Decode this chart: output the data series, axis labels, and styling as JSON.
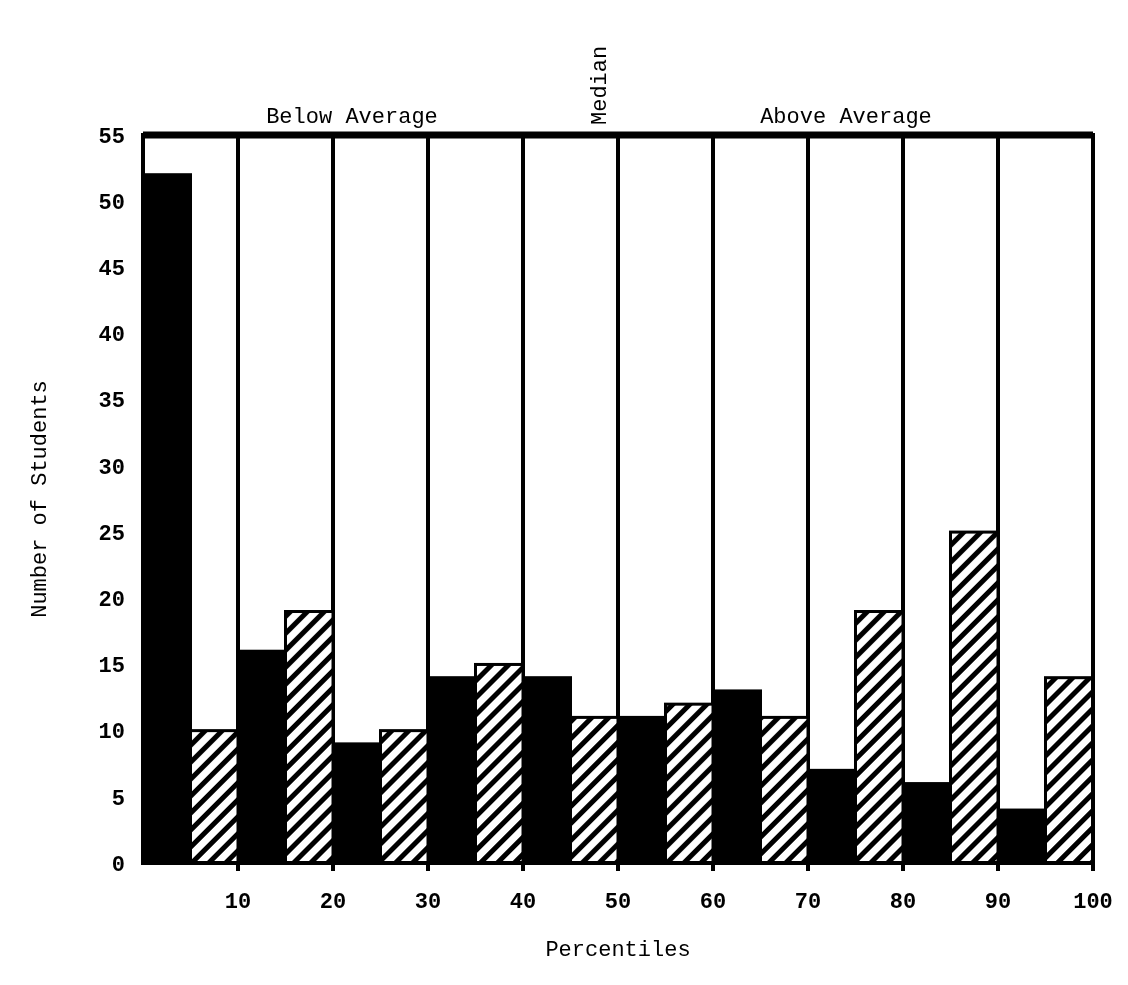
{
  "chart_data": {
    "type": "bar",
    "xlabel": "Percentiles",
    "ylabel": "Number of Students",
    "series": [
      {
        "color": "#000000",
        "x": [
          2.5,
          12.5,
          22.5,
          32.5,
          42.5,
          52.5,
          62.5,
          72.5,
          82.5,
          92.5
        ],
        "values": [
          52,
          16,
          9,
          14,
          14,
          11,
          13,
          7,
          6,
          4
        ]
      },
      {
        "color": "#000000",
        "x": [
          7.5,
          17.5,
          27.5,
          37.5,
          47.5,
          57.5,
          67.5,
          77.5,
          87.5,
          97.5
        ],
        "values": [
          10,
          19,
          10,
          15,
          11,
          12,
          11,
          19,
          25,
          14
        ]
      }
    ],
    "xlim": [
      0,
      100
    ],
    "xticks": [
      10,
      20,
      30,
      40,
      50,
      60,
      70,
      80,
      90,
      100
    ],
    "ylim": [
      0,
      55
    ],
    "yticks": [
      0,
      5,
      10,
      15,
      20,
      25,
      30,
      35,
      40,
      45,
      50,
      55
    ],
    "grid": "x",
    "annotations": [
      "Below Average",
      "Median",
      "Above Average"
    ]
  }
}
